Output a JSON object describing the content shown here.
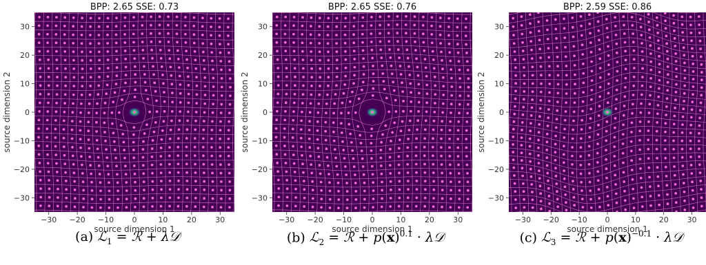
{
  "chart_data": [
    {
      "type": "scatter",
      "title": "BPP: 2.65   SSE: 0.73",
      "xlabel": "source dimension 1",
      "ylabel": "source dimension 2",
      "xlim": [
        -35,
        35
      ],
      "ylim": [
        -35,
        35
      ],
      "xticks": [
        -30,
        -20,
        -10,
        0,
        10,
        20,
        30
      ],
      "yticks": [
        -30,
        -20,
        -10,
        0,
        10,
        20,
        30
      ],
      "grid_spacing": 3,
      "warp": {
        "mode": "radial",
        "amount": 0.9
      },
      "source_density": {
        "center": [
          0,
          0
        ],
        "spread": 1.2
      },
      "caption": {
        "prefix": "(a) ",
        "formula_text": "ℒ1 = ℛ + λ𝒟"
      }
    },
    {
      "type": "scatter",
      "title": "BPP: 2.65   SSE: 0.76",
      "xlabel": "source dimension 1",
      "ylabel": "source dimension 2",
      "xlim": [
        -35,
        35
      ],
      "ylim": [
        -35,
        35
      ],
      "xticks": [
        -30,
        -20,
        -10,
        0,
        10,
        20,
        30
      ],
      "yticks": [
        -30,
        -20,
        -10,
        0,
        10,
        20,
        30
      ],
      "grid_spacing": 3,
      "warp": {
        "mode": "radial",
        "amount": 1.1
      },
      "source_density": {
        "center": [
          0,
          0
        ],
        "spread": 1.2
      },
      "caption": {
        "prefix": "(b) ",
        "formula_text": "ℒ2 = ℛ + p(x)^0.1 · λ𝒟"
      }
    },
    {
      "type": "scatter",
      "title": "BPP: 2.59   SSE: 0.86",
      "xlabel": "source dimension 1",
      "ylabel": "source dimension 2",
      "xlim": [
        -35,
        35
      ],
      "ylim": [
        -35,
        35
      ],
      "xticks": [
        -30,
        -20,
        -10,
        0,
        10,
        20,
        30
      ],
      "yticks": [
        -30,
        -20,
        -10,
        0,
        10,
        20,
        30
      ],
      "grid_spacing": 3,
      "warp": {
        "mode": "wavy",
        "amount": 1.4
      },
      "source_density": {
        "center": [
          0,
          0
        ],
        "spread": 1.2
      },
      "caption": {
        "prefix": "(c) ",
        "formula_text": "ℒ3 = ℛ + p(x)^−0.1 · λ𝒟"
      }
    }
  ],
  "colors": {
    "background": "#440154",
    "grid_line": "#e57fc9",
    "point": "#f06ad6",
    "density_core": "#fde725",
    "density_mid": "#35b779",
    "density_outer": "#31688e",
    "axis_text": "#333333"
  }
}
